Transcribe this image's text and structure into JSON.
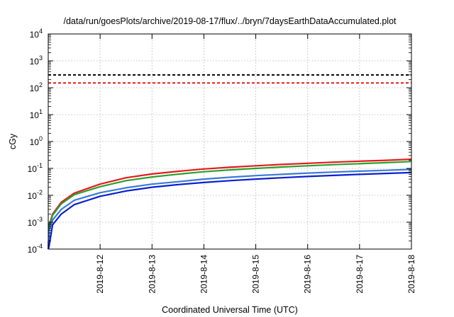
{
  "chart_data": {
    "type": "line",
    "title": "/data/run/goesPlots/archive/2019-08-17/flux/../bryn/7daysEarthDataAccumulated.plot",
    "xlabel": "Coordinated Universal Time (UTC)",
    "ylabel": "cGy",
    "yscale": "log",
    "ylim": [
      0.0001,
      10000
    ],
    "xlim": [
      "2019-08-11",
      "2019-08-18"
    ],
    "grid": true,
    "y_tick_labels": [
      {
        "base": "10",
        "exp": "-4",
        "value": 0.0001
      },
      {
        "base": "10",
        "exp": "-3",
        "value": 0.001
      },
      {
        "base": "10",
        "exp": "-2",
        "value": 0.01
      },
      {
        "base": "10",
        "exp": "-1",
        "value": 0.1
      },
      {
        "base": "10",
        "exp": "0",
        "value": 1
      },
      {
        "base": "10",
        "exp": "1",
        "value": 10
      },
      {
        "base": "10",
        "exp": "2",
        "value": 100
      },
      {
        "base": "10",
        "exp": "3",
        "value": 1000
      },
      {
        "base": "10",
        "exp": "4",
        "value": 10000
      }
    ],
    "x_tick_labels": [
      "2019-8-12",
      "2019-8-13",
      "2019-8-14",
      "2019-8-15",
      "2019-8-16",
      "2019-8-17",
      "2019-8-18"
    ],
    "hlines": [
      {
        "value": 300,
        "color": "#000000",
        "style": "dashed"
      },
      {
        "value": 150,
        "color": "#e41a1c",
        "style": "dashed"
      }
    ],
    "series": [
      {
        "color": "#e41a1c",
        "x": [
          "2019-08-11T00:30",
          "2019-08-11T02:00",
          "2019-08-11T06:00",
          "2019-08-11T12:00",
          "2019-08-12T00:00",
          "2019-08-12T12:00",
          "2019-08-13T00:00",
          "2019-08-13T12:00",
          "2019-08-14T00:00",
          "2019-08-14T12:00",
          "2019-08-15T00:00",
          "2019-08-15T12:00",
          "2019-08-16T00:00",
          "2019-08-16T12:00",
          "2019-08-17T00:00",
          "2019-08-17T12:00",
          "2019-08-18T00:00"
        ],
        "y": [
          0.0008,
          0.002,
          0.0055,
          0.012,
          0.026,
          0.045,
          0.062,
          0.078,
          0.095,
          0.11,
          0.125,
          0.14,
          0.155,
          0.17,
          0.185,
          0.2,
          0.22
        ]
      },
      {
        "color": "#2ca02c",
        "x": [
          "2019-08-11T00:30",
          "2019-08-11T02:00",
          "2019-08-11T06:00",
          "2019-08-11T12:00",
          "2019-08-12T00:00",
          "2019-08-12T12:00",
          "2019-08-13T00:00",
          "2019-08-13T12:00",
          "2019-08-14T00:00",
          "2019-08-14T12:00",
          "2019-08-15T00:00",
          "2019-08-15T12:00",
          "2019-08-16T00:00",
          "2019-08-16T12:00",
          "2019-08-17T00:00",
          "2019-08-17T12:00",
          "2019-08-18T00:00"
        ],
        "y": [
          0.0007,
          0.0018,
          0.0048,
          0.0105,
          0.021,
          0.035,
          0.048,
          0.061,
          0.075,
          0.088,
          0.1,
          0.113,
          0.125,
          0.138,
          0.15,
          0.163,
          0.18
        ]
      },
      {
        "color": "#3a7bd5",
        "x": [
          "2019-08-11T00:30",
          "2019-08-11T02:00",
          "2019-08-11T06:00",
          "2019-08-11T12:00",
          "2019-08-12T00:00",
          "2019-08-12T12:00",
          "2019-08-13T00:00",
          "2019-08-13T12:00",
          "2019-08-14T00:00",
          "2019-08-14T12:00",
          "2019-08-15T00:00",
          "2019-08-15T12:00",
          "2019-08-16T00:00",
          "2019-08-16T12:00",
          "2019-08-17T00:00",
          "2019-08-17T12:00",
          "2019-08-18T00:00"
        ],
        "y": [
          0.0005,
          0.0012,
          0.003,
          0.0065,
          0.0125,
          0.019,
          0.026,
          0.032,
          0.04,
          0.047,
          0.054,
          0.06,
          0.067,
          0.073,
          0.079,
          0.085,
          0.092
        ]
      },
      {
        "color": "#0a1fd0",
        "x": [
          "2019-08-11T00:20",
          "2019-08-11T02:00",
          "2019-08-11T06:00",
          "2019-08-11T12:00",
          "2019-08-12T00:00",
          "2019-08-12T12:00",
          "2019-08-13T00:00",
          "2019-08-13T12:00",
          "2019-08-14T00:00",
          "2019-08-14T12:00",
          "2019-08-15T00:00",
          "2019-08-15T12:00",
          "2019-08-16T00:00",
          "2019-08-16T12:00",
          "2019-08-17T00:00",
          "2019-08-17T12:00",
          "2019-08-18T00:00"
        ],
        "y": [
          0.00012,
          0.0008,
          0.002,
          0.0045,
          0.0092,
          0.0145,
          0.02,
          0.025,
          0.03,
          0.035,
          0.04,
          0.045,
          0.05,
          0.055,
          0.06,
          0.065,
          0.07
        ]
      }
    ]
  }
}
